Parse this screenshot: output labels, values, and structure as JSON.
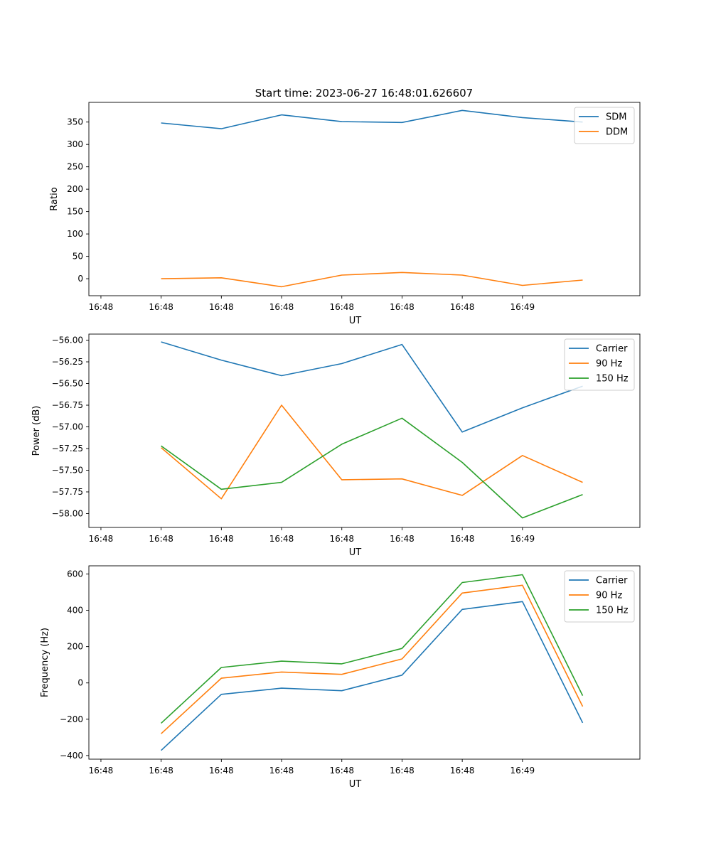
{
  "figure_title": "Start time: 2023-06-27 16:48:01.626607",
  "colors": {
    "blue": "#1f77b4",
    "orange": "#ff7f0e",
    "green": "#2ca02c"
  },
  "chart_data": [
    {
      "type": "line",
      "title": "Start time: 2023-06-27 16:48:01.626607",
      "xlabel": "UT",
      "ylabel": "Ratio",
      "x_tick_labels": [
        "16:48",
        "16:48",
        "16:48",
        "16:48",
        "16:48",
        "16:48",
        "16:48",
        "16:49"
      ],
      "x": [
        1,
        2,
        3,
        4,
        5,
        6,
        7,
        8
      ],
      "xlim": [
        -0.2,
        8.95
      ],
      "ylim": [
        -38,
        394
      ],
      "y_ticks": [
        0,
        50,
        100,
        150,
        200,
        250,
        300,
        350
      ],
      "legend_position": "top-right",
      "series": [
        {
          "name": "SDM",
          "color": "#1f77b4",
          "values": [
            348,
            335,
            366,
            351,
            349,
            376,
            360,
            350
          ]
        },
        {
          "name": "DDM",
          "color": "#ff7f0e",
          "values": [
            0,
            2,
            -18,
            8,
            14,
            8,
            -15,
            -3
          ]
        }
      ]
    },
    {
      "type": "line",
      "xlabel": "UT",
      "ylabel": "Power (dB)",
      "x_tick_labels": [
        "16:48",
        "16:48",
        "16:48",
        "16:48",
        "16:48",
        "16:48",
        "16:48",
        "16:49"
      ],
      "x": [
        1,
        2,
        3,
        4,
        5,
        6,
        7,
        8
      ],
      "xlim": [
        -0.2,
        8.95
      ],
      "ylim": [
        -58.16,
        -55.93
      ],
      "y_ticks": [
        -58.0,
        -57.75,
        -57.5,
        -57.25,
        -57.0,
        -56.75,
        -56.5,
        -56.25,
        -56.0
      ],
      "y_tick_labels": [
        "−58.00",
        "−57.75",
        "−57.50",
        "−57.25",
        "−57.00",
        "−56.75",
        "−56.50",
        "−56.25",
        "−56.00"
      ],
      "legend_position": "top-right",
      "series": [
        {
          "name": "Carrier",
          "color": "#1f77b4",
          "values": [
            -56.02,
            -56.23,
            -56.41,
            -56.27,
            -56.05,
            -57.06,
            -56.78,
            -56.53
          ]
        },
        {
          "name": "90 Hz",
          "color": "#ff7f0e",
          "values": [
            -57.24,
            -57.83,
            -56.75,
            -57.61,
            -57.6,
            -57.79,
            -57.33,
            -57.64
          ]
        },
        {
          "name": "150 Hz",
          "color": "#2ca02c",
          "values": [
            -57.22,
            -57.72,
            -57.64,
            -57.2,
            -56.9,
            -57.41,
            -58.05,
            -57.78
          ]
        }
      ]
    },
    {
      "type": "line",
      "xlabel": "UT",
      "ylabel": "Frequency (Hz)",
      "x_tick_labels": [
        "16:48",
        "16:48",
        "16:48",
        "16:48",
        "16:48",
        "16:48",
        "16:48",
        "16:49"
      ],
      "x": [
        1,
        2,
        3,
        4,
        5,
        6,
        7,
        8
      ],
      "xlim": [
        -0.2,
        8.95
      ],
      "ylim": [
        -420,
        645
      ],
      "y_ticks": [
        -400,
        -200,
        0,
        200,
        400,
        600
      ],
      "y_tick_labels": [
        "−400",
        "−200",
        "0",
        "200",
        "400",
        "600"
      ],
      "legend_position": "top-right",
      "series": [
        {
          "name": "Carrier",
          "color": "#1f77b4",
          "values": [
            -372,
            -63,
            -29,
            -43,
            43,
            405,
            448,
            -220
          ]
        },
        {
          "name": "90 Hz",
          "color": "#ff7f0e",
          "values": [
            -280,
            26,
            60,
            47,
            132,
            495,
            538,
            -130
          ]
        },
        {
          "name": "150 Hz",
          "color": "#2ca02c",
          "values": [
            -222,
            85,
            120,
            105,
            190,
            553,
            596,
            -70
          ]
        }
      ]
    }
  ]
}
